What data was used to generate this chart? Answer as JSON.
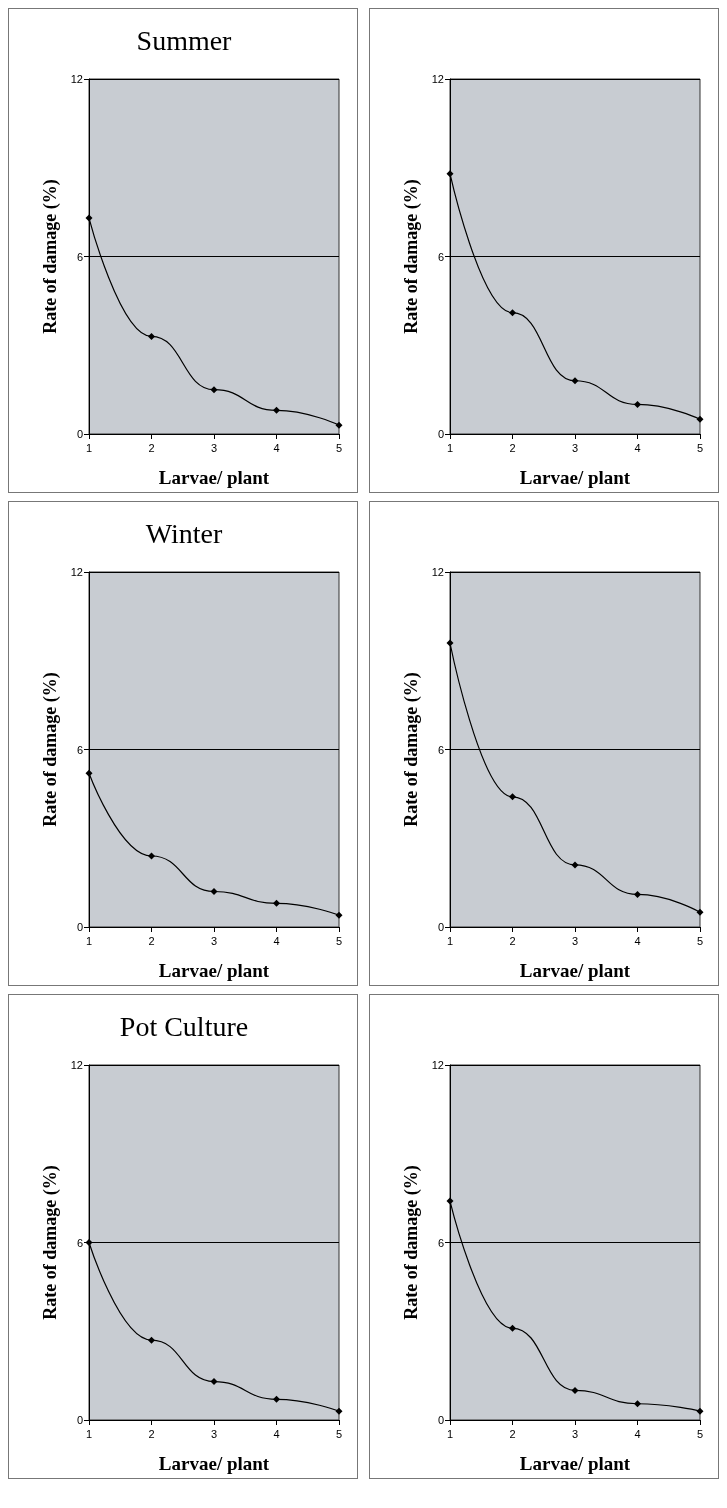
{
  "chart_data": [
    {
      "type": "line",
      "title": "Summer",
      "xlabel": "Larvae/ plant",
      "ylabel": "Rate of damage (%)",
      "categories": [
        "1",
        "2",
        "3",
        "4",
        "5"
      ],
      "values": [
        7.3,
        3.3,
        1.5,
        0.8,
        0.3
      ],
      "color": "#000000",
      "ylim": [
        0,
        12
      ],
      "yticks": [
        0,
        6,
        12
      ],
      "grid": "y",
      "marker": "diamond"
    },
    {
      "type": "line",
      "title": "Winter",
      "xlabel": "Larvae/ plant",
      "ylabel": "Rate of damage (%)",
      "categories": [
        "1",
        "2",
        "3",
        "4",
        "5"
      ],
      "values": [
        5.2,
        2.4,
        1.2,
        0.8,
        0.4
      ],
      "color": "#000000",
      "ylim": [
        0,
        12
      ],
      "yticks": [
        0,
        6,
        12
      ],
      "grid": "y",
      "marker": "diamond"
    },
    {
      "type": "line",
      "title": "Pot Culture",
      "xlabel": "Larvae/ plant",
      "ylabel": "Rate of damage (%)",
      "categories": [
        "1",
        "2",
        "3",
        "4",
        "5"
      ],
      "values": [
        6.0,
        2.7,
        1.3,
        0.7,
        0.3
      ],
      "color": "#000000",
      "ylim": [
        0,
        12
      ],
      "yticks": [
        0,
        6,
        12
      ],
      "grid": "y",
      "marker": "diamond"
    },
    {
      "type": "line",
      "xlabel": "Larvae/ plant",
      "ylabel": "Rate of damage (%)",
      "categories": [
        "1",
        "2",
        "3",
        "4",
        "5"
      ],
      "values": [
        8.8,
        4.1,
        1.8,
        1.0,
        0.5
      ],
      "color": "#000000",
      "ylim": [
        0,
        12
      ],
      "yticks": [
        0,
        6,
        12
      ],
      "grid": "y",
      "marker": "diamond"
    },
    {
      "type": "line",
      "xlabel": "Larvae/ plant",
      "ylabel": "Rate of damage (%)",
      "categories": [
        "1",
        "2",
        "3",
        "4",
        "5"
      ],
      "values": [
        9.6,
        4.4,
        2.1,
        1.1,
        0.5
      ],
      "color": "#000000",
      "ylim": [
        0,
        12
      ],
      "yticks": [
        0,
        6,
        12
      ],
      "grid": "y",
      "marker": "diamond"
    },
    {
      "type": "line",
      "xlabel": "Larvae/ plant",
      "ylabel": "Rate of damage (%)",
      "categories": [
        "1",
        "2",
        "3",
        "4",
        "5"
      ],
      "values": [
        7.4,
        3.1,
        1.0,
        0.55,
        0.3
      ],
      "color": "#000000",
      "ylim": [
        0,
        12
      ],
      "yticks": [
        0,
        6,
        12
      ],
      "grid": "y",
      "marker": "diamond"
    }
  ]
}
